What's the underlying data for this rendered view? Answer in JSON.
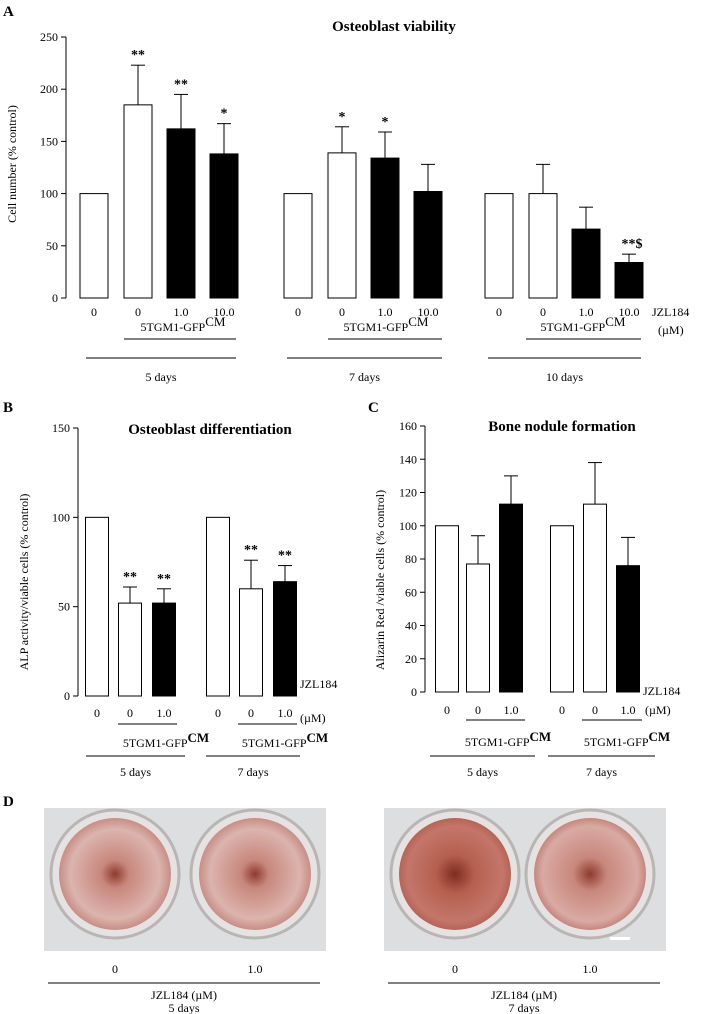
{
  "panel_letters": {
    "a": "A",
    "b": "B",
    "c": "C",
    "d": "D"
  },
  "colors": {
    "filled": "#000000",
    "open": "#ffffff",
    "stroke": "#000000",
    "plate": "#dcdedf",
    "well": "#d9c2bd",
    "stain": "#c8877c",
    "stain_dark": "#8f3a2e"
  },
  "chart_data": [
    {
      "id": "panel_a",
      "type": "bar",
      "title": "Osteoblast viability",
      "ylabel": "Cell number (% control)",
      "ylim": [
        0,
        250
      ],
      "yticks": [
        0,
        50,
        100,
        150,
        200,
        250
      ],
      "treatment_label": "JZL184",
      "treatment_unit": "(µM)",
      "group_label_text": "5TGM1-GFP",
      "group_label_sup": "CM",
      "timepoints": [
        "5 days",
        "7 days",
        "10 days"
      ],
      "bars": [
        {
          "time": "5 days",
          "x": "0",
          "value": 100,
          "error": 0,
          "fill": "open",
          "sig": ""
        },
        {
          "time": "5 days",
          "x": "0",
          "value": 185,
          "error": 38,
          "fill": "open",
          "sig": "**"
        },
        {
          "time": "5 days",
          "x": "1.0",
          "value": 162,
          "error": 33,
          "fill": "filled",
          "sig": "**"
        },
        {
          "time": "5 days",
          "x": "10.0",
          "value": 138,
          "error": 29,
          "fill": "filled",
          "sig": "*"
        },
        {
          "time": "7 days",
          "x": "0",
          "value": 100,
          "error": 0,
          "fill": "open",
          "sig": ""
        },
        {
          "time": "7 days",
          "x": "0",
          "value": 139,
          "error": 25,
          "fill": "open",
          "sig": "*"
        },
        {
          "time": "7 days",
          "x": "1.0",
          "value": 134,
          "error": 25,
          "fill": "filled",
          "sig": "*"
        },
        {
          "time": "7 days",
          "x": "10.0",
          "value": 102,
          "error": 26,
          "fill": "filled",
          "sig": ""
        },
        {
          "time": "10 days",
          "x": "0",
          "value": 100,
          "error": 0,
          "fill": "open",
          "sig": ""
        },
        {
          "time": "10 days",
          "x": "0",
          "value": 100,
          "error": 28,
          "fill": "open",
          "sig": ""
        },
        {
          "time": "10 days",
          "x": "1.0",
          "value": 66,
          "error": 21,
          "fill": "filled",
          "sig": ""
        },
        {
          "time": "10 days",
          "x": "10.0",
          "value": 34,
          "error": 8,
          "fill": "filled",
          "sig": "**$"
        }
      ]
    },
    {
      "id": "panel_b",
      "type": "bar",
      "title": "Osteoblast differentiation",
      "ylabel": "ALP activity/viable cells (% control)",
      "ylim": [
        0,
        150
      ],
      "yticks": [
        0,
        50,
        100,
        150
      ],
      "treatment_label": "JZL184",
      "treatment_unit": "(µM)",
      "group_label_text": "5TGM1-GFP",
      "group_label_sup": "CM",
      "timepoints": [
        "5 days",
        "7 days"
      ],
      "bars": [
        {
          "time": "5 days",
          "x": "0",
          "value": 100,
          "error": 0,
          "fill": "open",
          "sig": ""
        },
        {
          "time": "5 days",
          "x": "0",
          "value": 52,
          "error": 9,
          "fill": "open",
          "sig": "**"
        },
        {
          "time": "5 days",
          "x": "1.0",
          "value": 52,
          "error": 8,
          "fill": "filled",
          "sig": "**"
        },
        {
          "time": "7 days",
          "x": "0",
          "value": 100,
          "error": 0,
          "fill": "open",
          "sig": ""
        },
        {
          "time": "7 days",
          "x": "0",
          "value": 60,
          "error": 16,
          "fill": "open",
          "sig": "**"
        },
        {
          "time": "7 days",
          "x": "1.0",
          "value": 64,
          "error": 9,
          "fill": "filled",
          "sig": "**"
        }
      ]
    },
    {
      "id": "panel_c",
      "type": "bar",
      "title": "Bone nodule formation",
      "ylabel": "Alizarin Red /viable cells (% control)",
      "ylim": [
        0,
        160
      ],
      "yticks": [
        0,
        20,
        40,
        60,
        80,
        100,
        120,
        140,
        160
      ],
      "treatment_label": "JZL184",
      "treatment_unit": "(µM)",
      "group_label_text": "5TGM1-GFP",
      "group_label_sup": "CM",
      "timepoints": [
        "5 days",
        "7 days"
      ],
      "bars": [
        {
          "time": "5 days",
          "x": "0",
          "value": 100,
          "error": 0,
          "fill": "open",
          "sig": ""
        },
        {
          "time": "5 days",
          "x": "0",
          "value": 77,
          "error": 17,
          "fill": "open",
          "sig": ""
        },
        {
          "time": "5 days",
          "x": "1.0",
          "value": 113,
          "error": 17,
          "fill": "filled",
          "sig": ""
        },
        {
          "time": "7 days",
          "x": "0",
          "value": 100,
          "error": 0,
          "fill": "open",
          "sig": ""
        },
        {
          "time": "7 days",
          "x": "0",
          "value": 113,
          "error": 25,
          "fill": "open",
          "sig": ""
        },
        {
          "time": "7 days",
          "x": "1.0",
          "value": 76,
          "error": 17,
          "fill": "filled",
          "sig": ""
        }
      ]
    }
  ],
  "panel_d": {
    "images": [
      {
        "dose_left": "0",
        "dose_right": "1.0",
        "treatment": "JZL184 (µM)",
        "time": "5 days"
      },
      {
        "dose_left": "0",
        "dose_right": "1.0",
        "treatment": "JZL184 (µM)",
        "time": "7 days"
      }
    ]
  }
}
